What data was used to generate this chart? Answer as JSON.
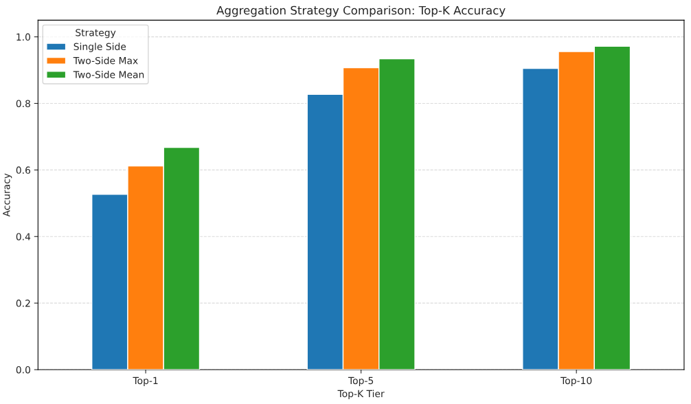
{
  "chart_data": {
    "type": "bar",
    "title": "Aggregation Strategy Comparison: Top-K Accuracy",
    "xlabel": "Top-K Tier",
    "ylabel": "Accuracy",
    "legend_title": "Strategy",
    "categories": [
      "Top-1",
      "Top-5",
      "Top-10"
    ],
    "series": [
      {
        "name": "Single Side",
        "color": "#1f77b4",
        "values": [
          0.527,
          0.827,
          0.905
        ]
      },
      {
        "name": "Two-Side Max",
        "color": "#ff7f0e",
        "values": [
          0.612,
          0.907,
          0.956
        ]
      },
      {
        "name": "Two-Side Mean",
        "color": "#2ca02c",
        "values": [
          0.668,
          0.934,
          0.972
        ]
      }
    ],
    "ylim": [
      0,
      1.05
    ],
    "yticks": [
      {
        "value": 0,
        "label": "0.0"
      },
      0.2,
      0.4,
      0.6,
      0.8,
      {
        "value": 1,
        "label": "1.0"
      }
    ],
    "grid": "y",
    "legend": "top left"
  }
}
